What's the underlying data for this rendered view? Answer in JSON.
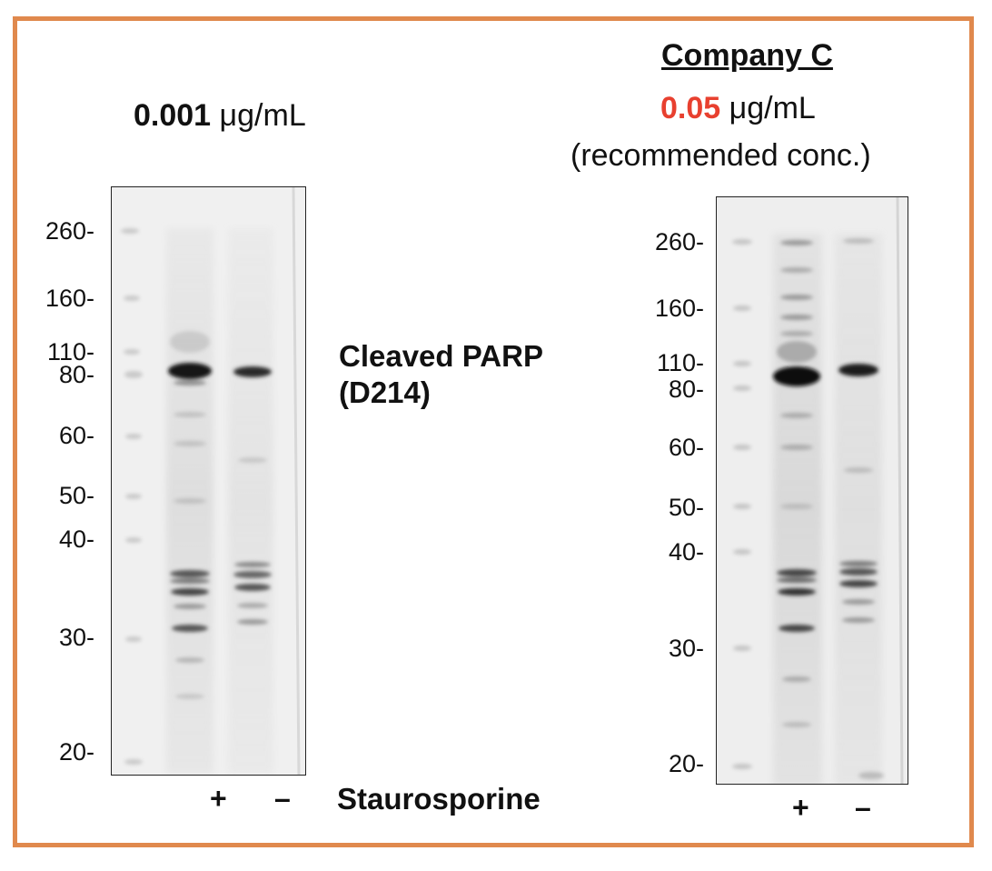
{
  "left_panel": {
    "conc_value": "0.001",
    "conc_unit": "μg/mL",
    "mw_markers": [
      "260-",
      "160-",
      "110-",
      "80-",
      "60-",
      "50-",
      "40-",
      "30-",
      "20-"
    ],
    "lane_plus": "+",
    "lane_minus": "–"
  },
  "right_panel": {
    "company": "Company C",
    "conc_value": "0.05",
    "conc_unit": "μg/mL",
    "note": "(recommended conc.)",
    "mw_markers": [
      "260-",
      "160-",
      "110-",
      "80-",
      "60-",
      "50-",
      "40-",
      "30-",
      "20-"
    ],
    "lane_plus": "+",
    "lane_minus": "–"
  },
  "protein_label_line1": "Cleaved PARP",
  "protein_label_line2": "(D214)",
  "treatment_label": "Staurosporine",
  "colors": {
    "frame": "#e0894d",
    "highlight": "#e8402f"
  }
}
